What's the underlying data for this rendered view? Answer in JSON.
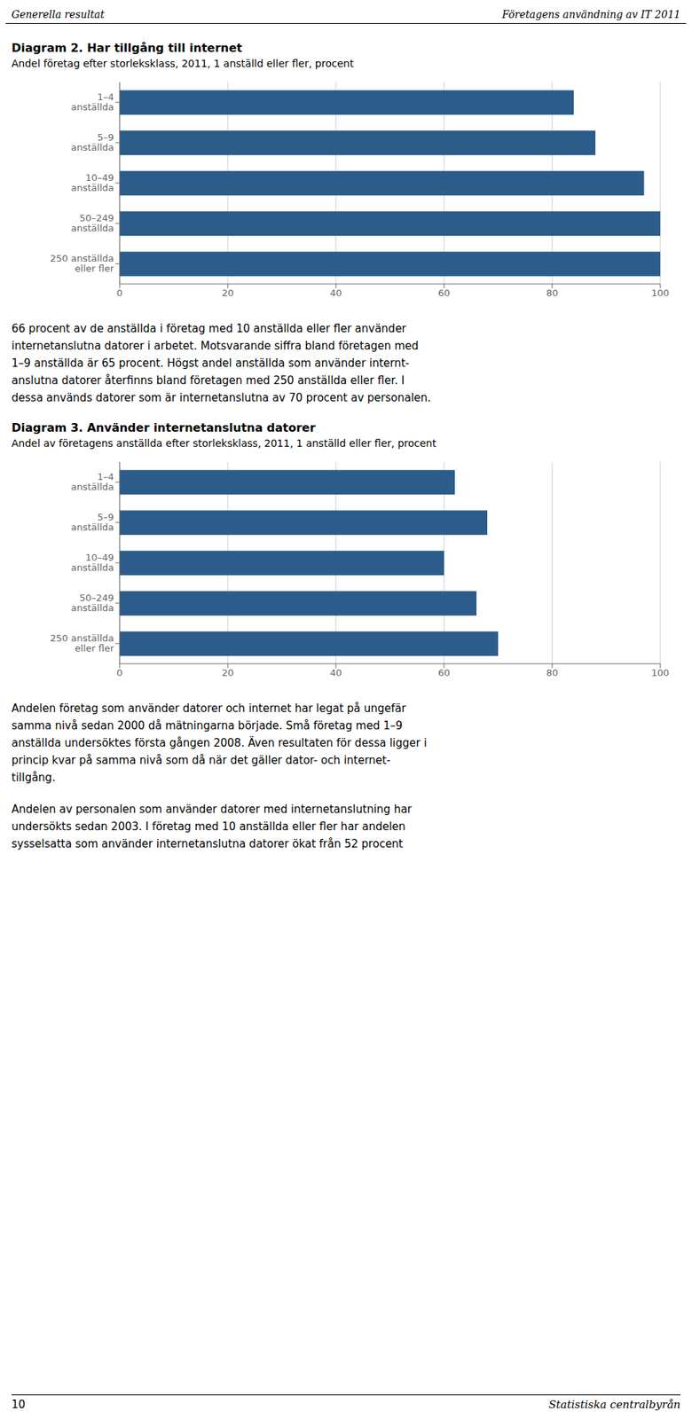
{
  "header": [
    "Generella resultat",
    "Företagens användning av IT 2011"
  ],
  "chart_data": [
    {
      "type": "bar",
      "title": "Diagram 2. Har tillgång till internet",
      "subtitle": "Andel företag efter storleksklass, 2011, 1 anställd eller fler, procent",
      "categories": [
        "1–4\nanställda",
        "5–9\nanställda",
        "10–49\nanställda",
        "50–249\nanställda",
        "250 anställda\neller fler"
      ],
      "values": [
        84,
        88,
        97,
        100,
        100
      ],
      "color": "#2b5c8a",
      "xlim": [
        0,
        100
      ],
      "xticks": [
        0,
        20,
        40,
        60,
        80,
        100
      ],
      "orientation": "horizontal",
      "grid": true
    },
    {
      "type": "bar",
      "title": "Diagram 3. Använder internetanslutna datorer",
      "subtitle": "Andel av företagens anställda efter storleksklass, 2011, 1 anställd eller fler, procent",
      "categories": [
        "1–4\nanställda",
        "5–9\nanställda",
        "10–49\nanställda",
        "50–249\nanställda",
        "250 anställda\neller fler"
      ],
      "values": [
        62,
        68,
        60,
        66,
        70
      ],
      "color": "#2b5c8a",
      "xlim": [
        0,
        100
      ],
      "xticks": [
        0,
        20,
        40,
        60,
        80,
        100
      ],
      "orientation": "horizontal",
      "grid": true
    }
  ],
  "paragraphs": [
    [
      "66 procent av de anställda i företag med 10 anställda eller fler använder",
      "internetanslutna datorer i arbetet. Motsvarande siffra bland företagen med",
      "1–9 anställda är 65 procent. Högst andel anställda som använder internt-",
      "anslutna datorer återfinns bland företagen med 250 anställda eller fler. I",
      "dessa används datorer som är internetanslutna av 70 procent av personalen."
    ],
    [
      "Andelen företag som använder datorer och internet har legat på ungefär",
      "samma nivå sedan 2000 då mätningarna började. Små företag med 1–9",
      "anställda undersöktes första gången 2008. Även resultaten för dessa ligger i",
      "princip kvar på samma nivå som då när det gäller dator- och internet-",
      "tillgång."
    ],
    [
      "Andelen av personalen som använder datorer med internetanslutning har",
      "undersökts sedan 2003. I företag med 10 anställda eller fler har andelen",
      "sysselsatta som använder internetanslutna datorer ökat från 52 procent"
    ]
  ],
  "footer": [
    "10",
    "Statistiska centralbyrån"
  ]
}
